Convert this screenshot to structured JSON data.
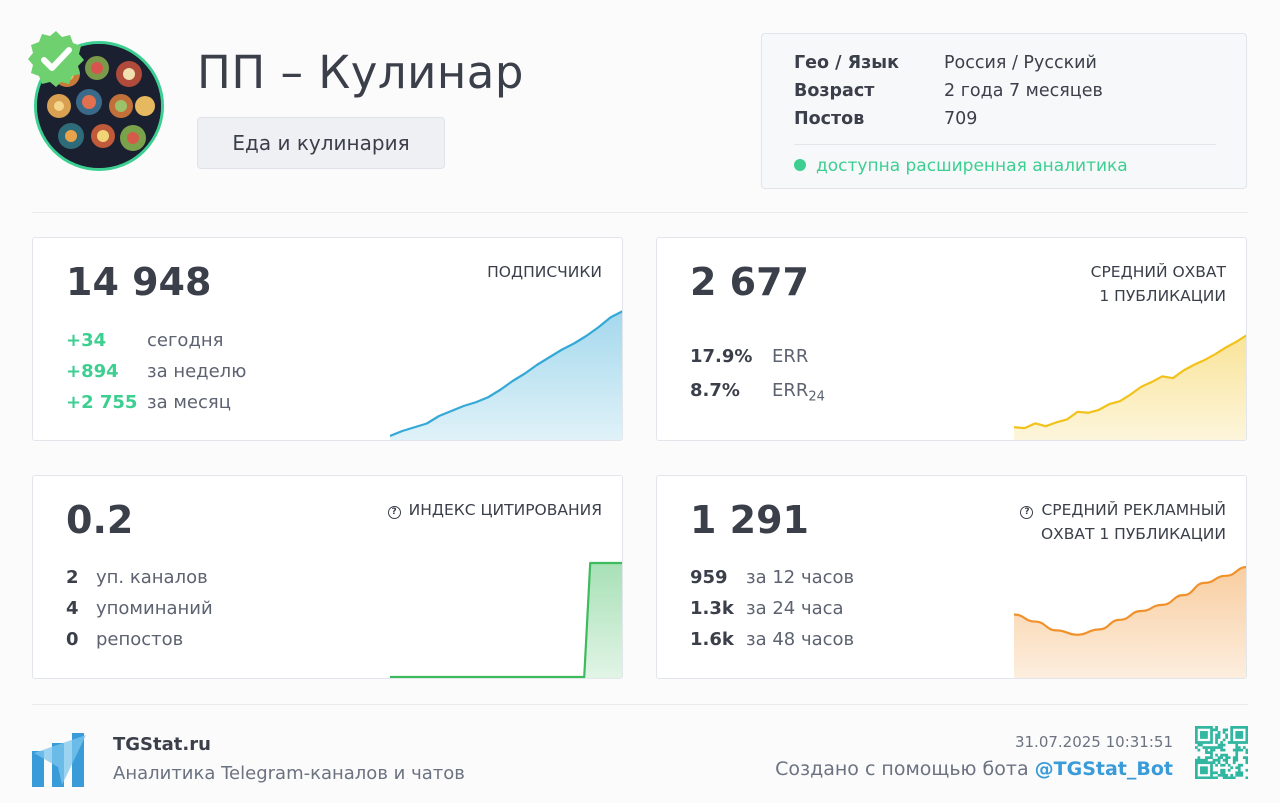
{
  "channel": {
    "title": "ПП – Кулинар",
    "category": "Еда и кулинария",
    "verified": true
  },
  "info": {
    "rows": [
      {
        "key": "Гео / Язык",
        "value": "Россия / Русский"
      },
      {
        "key": "Возраст",
        "value": "2 года 7 месяцев"
      },
      {
        "key": "Постов",
        "value": "709"
      }
    ],
    "status": "доступна расширенная аналитика"
  },
  "cards": {
    "subscribers": {
      "value": "14 948",
      "label": "ПОДПИСЧИКИ",
      "stats": [
        {
          "n": "+34",
          "t": "сегодня"
        },
        {
          "n": "+894",
          "t": "за неделю"
        },
        {
          "n": "+2 755",
          "t": "за месяц"
        }
      ]
    },
    "reach": {
      "value": "2 677",
      "label_line1": "СРЕДНИЙ ОХВАТ",
      "label_line2": "1 ПУБЛИКАЦИИ",
      "stats": [
        {
          "n": "17.9%",
          "t": "ERR"
        },
        {
          "n": "8.7%",
          "t": "ERR",
          "sub": "24"
        }
      ]
    },
    "citation": {
      "value": "0.2",
      "label": "ИНДЕКС ЦИТИРОВАНИЯ",
      "stats": [
        {
          "n": "2",
          "t": "уп. каналов"
        },
        {
          "n": "4",
          "t": "упоминаний"
        },
        {
          "n": "0",
          "t": "репостов"
        }
      ]
    },
    "ad_reach": {
      "value": "1 291",
      "label_line1": "СРЕДНИЙ РЕКЛАМНЫЙ",
      "label_line2": "ОХВАТ 1 ПУБЛИКАЦИИ",
      "stats": [
        {
          "n": "959",
          "t": "за 12 часов"
        },
        {
          "n": "1.3k",
          "t": "за 24 часа"
        },
        {
          "n": "1.6k",
          "t": "за 48 часов"
        }
      ]
    }
  },
  "footer": {
    "brand": "TGStat.ru",
    "tagline": "Аналитика Telegram-каналов и чатов",
    "datetime": "31.07.2025 10:31:51",
    "created_by": "Создано с помощью бота",
    "bot": "@TGStat_Bot"
  },
  "colors": {
    "accent_green": "#3ccf91",
    "subscribers": "#35a9d6",
    "reach": "#f2c21b",
    "citation": "#3dbb5d",
    "ad_reach": "#f0912c",
    "link": "#3a9bd9"
  },
  "sparklines": {
    "subscribers": [
      0.0,
      0.04,
      0.07,
      0.1,
      0.16,
      0.2,
      0.24,
      0.27,
      0.31,
      0.37,
      0.44,
      0.5,
      0.57,
      0.63,
      0.69,
      0.74,
      0.8,
      0.87,
      0.95,
      1.0
    ],
    "reach": [
      0.04,
      0.03,
      0.08,
      0.05,
      0.09,
      0.12,
      0.2,
      0.19,
      0.22,
      0.28,
      0.31,
      0.38,
      0.46,
      0.51,
      0.57,
      0.55,
      0.63,
      0.69,
      0.74,
      0.8,
      0.87,
      0.93,
      1.0
    ],
    "citation": [
      0,
      0,
      0,
      0,
      0,
      0,
      0,
      0,
      0,
      0,
      0,
      0,
      0,
      0,
      0,
      0,
      0,
      1,
      1,
      1
    ],
    "ad_reach": [
      0.46,
      0.38,
      0.28,
      0.23,
      0.29,
      0.4,
      0.5,
      0.57,
      0.68,
      0.82,
      0.9,
      1.0
    ]
  }
}
